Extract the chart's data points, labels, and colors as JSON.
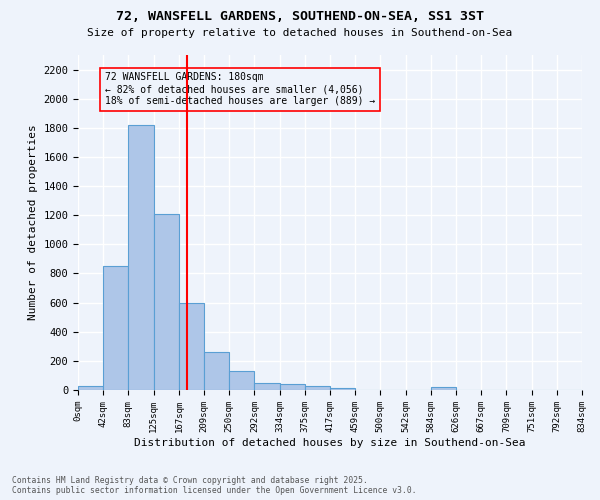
{
  "title": "72, WANSFELL GARDENS, SOUTHEND-ON-SEA, SS1 3ST",
  "subtitle": "Size of property relative to detached houses in Southend-on-Sea",
  "xlabel": "Distribution of detached houses by size in Southend-on-Sea",
  "ylabel": "Number of detached properties",
  "bar_color": "#aec6e8",
  "bar_edge_color": "#5a9fd4",
  "reference_line_x": 180,
  "reference_line_color": "red",
  "annotation_title": "72 WANSFELL GARDENS: 180sqm",
  "annotation_line1": "← 82% of detached houses are smaller (4,056)",
  "annotation_line2": "18% of semi-detached houses are larger (889) →",
  "bin_edges": [
    0,
    42,
    83,
    125,
    167,
    209,
    250,
    292,
    334,
    375,
    417,
    459,
    500,
    542,
    584,
    626,
    667,
    709,
    751,
    792,
    834
  ],
  "bar_heights": [
    25,
    850,
    1820,
    1210,
    600,
    260,
    130,
    50,
    40,
    30,
    15,
    0,
    0,
    0,
    20,
    0,
    0,
    0,
    0,
    0
  ],
  "ylim": [
    0,
    2300
  ],
  "yticks": [
    0,
    200,
    400,
    600,
    800,
    1000,
    1200,
    1400,
    1600,
    1800,
    2000,
    2200
  ],
  "background_color": "#eef3fb",
  "grid_color": "#ffffff",
  "footnote1": "Contains HM Land Registry data © Crown copyright and database right 2025.",
  "footnote2": "Contains public sector information licensed under the Open Government Licence v3.0."
}
